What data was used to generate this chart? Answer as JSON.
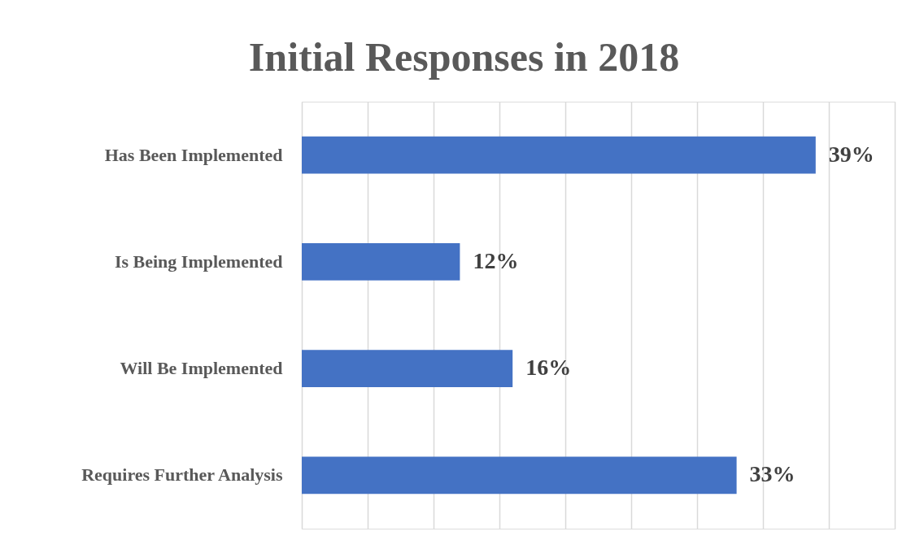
{
  "chart_data": {
    "type": "bar",
    "orientation": "horizontal",
    "title": "Initial Responses in 2018",
    "categories": [
      "Has Been Implemented",
      "Is Being Implemented",
      "Will Be Implemented",
      "Requires Further Analysis"
    ],
    "values": [
      39,
      12,
      16,
      33
    ],
    "value_labels": [
      "39%",
      "12%",
      "16%",
      "33%"
    ],
    "color": "#4472c4",
    "xlim": [
      0,
      45
    ],
    "xticks": [
      {
        "value": 0,
        "label": null
      },
      {
        "value": 5,
        "label": null
      },
      {
        "value": 10,
        "label": null
      },
      {
        "value": 15,
        "label": null
      },
      {
        "value": 20,
        "label": null
      },
      {
        "value": 25,
        "label": null
      },
      {
        "value": 30,
        "label": null
      },
      {
        "value": 35,
        "label": null
      },
      {
        "value": 40,
        "label": null
      },
      {
        "value": 45,
        "label": null
      }
    ],
    "grid": "x",
    "tick_labels": "y"
  }
}
